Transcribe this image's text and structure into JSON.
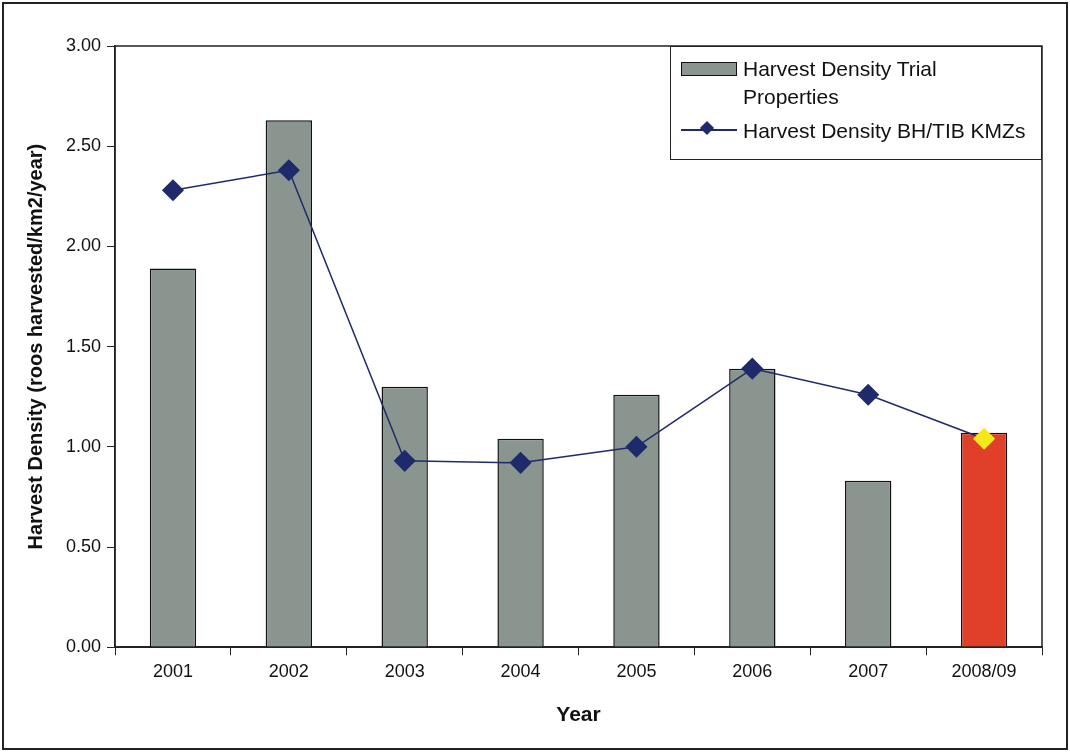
{
  "chart_data": {
    "type": "bar",
    "xlabel": "Year",
    "ylabel": "Harvest Density (roos harvested/km2/year)",
    "categories": [
      "2001",
      "2002",
      "2003",
      "2004",
      "2005",
      "2006",
      "2007",
      "2008/09"
    ],
    "series": [
      {
        "name": "Harvest Density Trial Properties",
        "color": "#8a9590",
        "colors": [
          "#8a9590",
          "#8a9590",
          "#8a9590",
          "#8a9590",
          "#8a9590",
          "#8a9590",
          "#8a9590",
          "#e0402a"
        ],
        "values": [
          1.89,
          2.63,
          1.3,
          1.04,
          1.26,
          1.39,
          0.83,
          1.07
        ]
      },
      {
        "name": "Harvest Density BH/TIB KMZs",
        "type": "line",
        "color": "#1f2a6b",
        "colors": [
          "#1f2a6b",
          "#1f2a6b",
          "#1f2a6b",
          "#1f2a6b",
          "#1f2a6b",
          "#1f2a6b",
          "#1f2a6b",
          "#f5e81a"
        ],
        "values": [
          2.28,
          2.38,
          0.93,
          0.92,
          1.0,
          1.39,
          1.26,
          1.04
        ]
      }
    ],
    "ylim": [
      0,
      3
    ],
    "yticks": [
      {
        "value": 0,
        "label": "0.00"
      },
      {
        "value": 0.5,
        "label": "0.50"
      },
      {
        "value": 1,
        "label": "1.00"
      },
      {
        "value": 1.5,
        "label": "1.50"
      },
      {
        "value": 2,
        "label": "2.00"
      },
      {
        "value": 2.5,
        "label": "2.50"
      },
      {
        "value": 3,
        "label": "3.00"
      }
    ],
    "grid": false,
    "legend": "top right",
    "marker": "diamond",
    "line_style": "solid"
  }
}
